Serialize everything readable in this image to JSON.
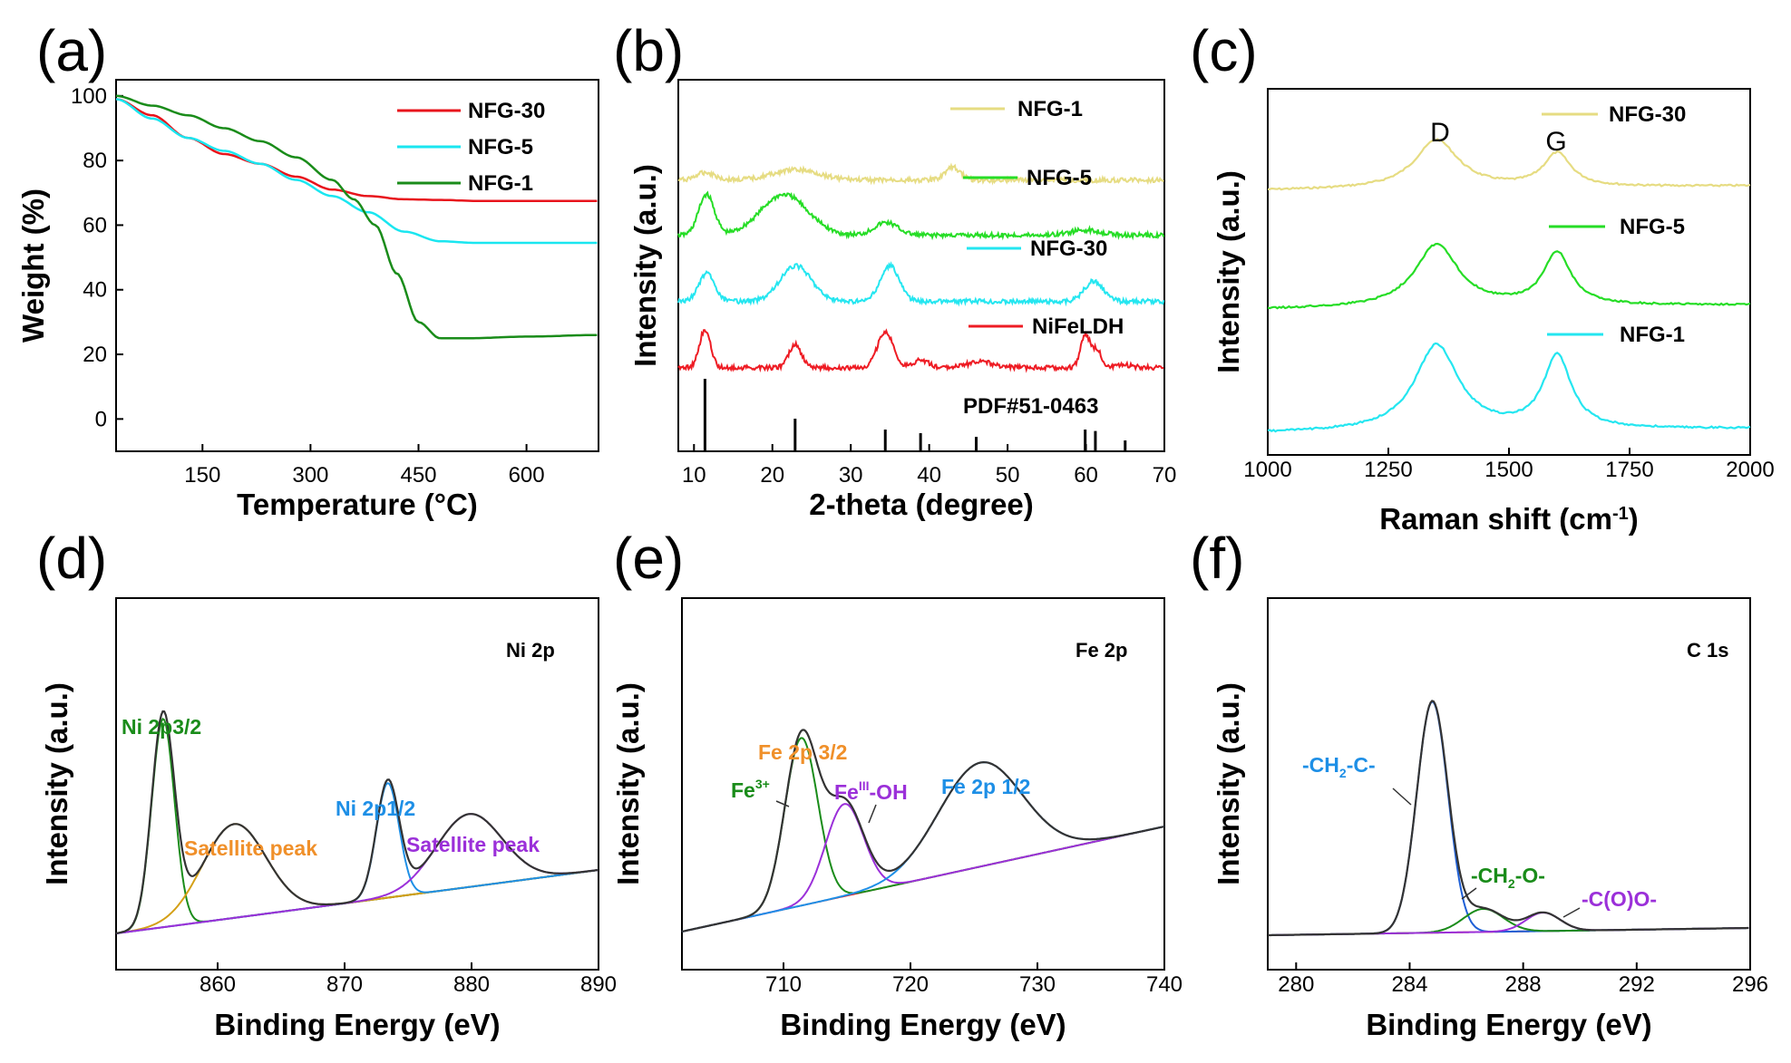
{
  "chart_data": [
    {
      "id": "a",
      "panel_label": "(a)",
      "type": "line",
      "xlabel": "Temperature (°C)",
      "ylabel": "Weight (%)",
      "xlim": [
        30,
        700
      ],
      "ylim": [
        -10,
        105
      ],
      "xticks": [
        150,
        300,
        450,
        600
      ],
      "yticks": [
        0,
        20,
        40,
        60,
        80,
        100
      ],
      "legend_position": "top-right",
      "series": [
        {
          "name": "NFG-30",
          "color": "#e8141c",
          "x": [
            30,
            80,
            130,
            180,
            230,
            280,
            330,
            380,
            430,
            480,
            530,
            600,
            700
          ],
          "y": [
            99,
            94,
            87,
            82,
            79,
            75,
            71,
            69,
            68,
            67.8,
            67.5,
            67.5,
            67.5
          ]
        },
        {
          "name": "NFG-5",
          "color": "#1ae6f0",
          "x": [
            30,
            80,
            130,
            180,
            230,
            280,
            330,
            380,
            430,
            480,
            530,
            600,
            700
          ],
          "y": [
            99,
            93,
            87,
            83,
            79,
            74,
            69,
            64,
            58,
            55,
            54.5,
            54.5,
            54.5
          ]
        },
        {
          "name": "NFG-1",
          "color": "#1a8c1a",
          "x": [
            30,
            80,
            130,
            180,
            230,
            280,
            330,
            360,
            390,
            420,
            450,
            480,
            520,
            600,
            700
          ],
          "y": [
            100,
            97,
            94,
            90,
            86,
            81,
            74,
            68,
            60,
            45,
            30,
            25,
            25,
            25.5,
            26
          ]
        }
      ]
    },
    {
      "id": "b",
      "panel_label": "(b)",
      "type": "line",
      "xlabel": "2-theta (degree)",
      "ylabel": "Intensity (a.u.)",
      "xlim": [
        8,
        70
      ],
      "xticks": [
        10,
        20,
        30,
        40,
        50,
        60,
        70
      ],
      "reference": {
        "label": "PDF#51-0463",
        "peaks": [
          {
            "x": 11.4,
            "h": 1.0
          },
          {
            "x": 22.9,
            "h": 0.45
          },
          {
            "x": 34.4,
            "h": 0.3
          },
          {
            "x": 38.9,
            "h": 0.25
          },
          {
            "x": 46.0,
            "h": 0.2
          },
          {
            "x": 59.9,
            "h": 0.3
          },
          {
            "x": 61.2,
            "h": 0.28
          },
          {
            "x": 65.0,
            "h": 0.15
          }
        ]
      },
      "series": [
        {
          "name": "NFG-1",
          "color": "#e6dc82",
          "baseline": 0.2,
          "peaks": [
            [
              11.5,
              0.3,
              1.2
            ],
            [
              23,
              0.4,
              3
            ],
            [
              43,
              0.5,
              1.0
            ]
          ]
        },
        {
          "name": "NFG-5",
          "color": "#26dd26",
          "baseline": 0.45,
          "peaks": [
            [
              11.6,
              1.6,
              1.0
            ],
            [
              21.5,
              1.6,
              3.0
            ],
            [
              34.5,
              0.5,
              1.5
            ],
            [
              60,
              0.2,
              2
            ]
          ]
        },
        {
          "name": "NFG-30",
          "color": "#24e6f0",
          "baseline": 0.75,
          "peaks": [
            [
              11.6,
              1.1,
              1.0
            ],
            [
              23,
              1.4,
              2.0
            ],
            [
              35,
              1.4,
              1.2
            ],
            [
              61,
              0.8,
              1.2
            ]
          ]
        },
        {
          "name": "NiFeLDH",
          "color": "#ee1c24",
          "baseline": 1.05,
          "peaks": [
            [
              11.4,
              1.5,
              0.7
            ],
            [
              22.9,
              0.9,
              0.8
            ],
            [
              34.4,
              1.4,
              1.0
            ],
            [
              39,
              0.3,
              1.0
            ],
            [
              46.5,
              0.25,
              1.5
            ],
            [
              59.9,
              1.3,
              0.6
            ],
            [
              61.4,
              0.7,
              0.6
            ],
            [
              65,
              0.1,
              1
            ]
          ]
        }
      ]
    },
    {
      "id": "c",
      "panel_label": "(c)",
      "type": "line",
      "xlabel": "Raman shift (cm-1)",
      "ylabel": "Intensity (a.u.)",
      "xlim": [
        1000,
        2000
      ],
      "xticks": [
        1000,
        1250,
        1500,
        1750,
        2000
      ],
      "annotations": [
        {
          "text": "D",
          "x": 1350
        },
        {
          "text": "G",
          "x": 1600
        }
      ],
      "series": [
        {
          "name": "NFG-30",
          "color": "#e6dc82",
          "offset": 2.55,
          "d_height": 0.48,
          "g_height": 0.33
        },
        {
          "name": "NFG-5",
          "color": "#26dd26",
          "offset": 1.3,
          "d_height": 0.62,
          "g_height": 0.52
        },
        {
          "name": "NFG-1",
          "color": "#24e6f0",
          "offset": 0.0,
          "d_height": 0.85,
          "g_height": 0.72
        }
      ]
    },
    {
      "id": "d",
      "panel_label": "(d)",
      "type": "line",
      "title": "Ni 2p",
      "xlabel": "Binding Energy (eV)",
      "ylabel": "Intensity (a.u.)",
      "xlim": [
        852,
        890
      ],
      "xticks": [
        860,
        870,
        880,
        890
      ],
      "annotations": [
        {
          "text": "Ni 2p3/2",
          "color": "#1a8c1a"
        },
        {
          "text": "Satellite peak",
          "color": "#f0902a"
        },
        {
          "text": "Ni 2p1/2",
          "color": "#1e8fe6"
        },
        {
          "text": "Satellite peak",
          "color": "#9b30d9"
        }
      ],
      "components": [
        {
          "name": "Ni 2p3/2",
          "color": "#1a8c1a",
          "center": 855.7,
          "height": 1.0,
          "width": 0.9
        },
        {
          "name": "Ni sat 1",
          "color": "#d4a017",
          "center": 861.3,
          "height": 0.45,
          "width": 2.5
        },
        {
          "name": "Ni 2p1/2",
          "color": "#1e8fe6",
          "center": 873.4,
          "height": 0.55,
          "width": 0.9
        },
        {
          "name": "Ni sat 2",
          "color": "#9b30d9",
          "center": 879.8,
          "height": 0.35,
          "width": 2.6
        }
      ]
    },
    {
      "id": "e",
      "panel_label": "(e)",
      "type": "line",
      "title": "Fe 2p",
      "xlabel": "Binding Energy (eV)",
      "ylabel": "Intensity (a.u.)",
      "xlim": [
        702,
        740
      ],
      "xticks": [
        710,
        720,
        730,
        740
      ],
      "annotations": [
        {
          "text": "Fe 2p 3/2",
          "color": "#f0902a"
        },
        {
          "text": "Fe",
          "sup": "3+",
          "color": "#1a8c1a"
        },
        {
          "text": "Fe",
          "sup": "III",
          "suffix": "-OH",
          "color": "#9b30d9"
        },
        {
          "text": "Fe 2p 1/2",
          "color": "#1e8fe6"
        }
      ],
      "components": [
        {
          "name": "Fe3+",
          "color": "#1a8c1a",
          "center": 711.4,
          "height": 1.0,
          "width": 1.3
        },
        {
          "name": "FeIII-OH",
          "color": "#9b30d9",
          "center": 714.8,
          "height": 0.55,
          "width": 1.5
        },
        {
          "name": "Fe 2p 1/2",
          "color": "#1e8fe6",
          "center": 725.5,
          "height": 0.62,
          "width": 3.3
        }
      ]
    },
    {
      "id": "f",
      "panel_label": "(f)",
      "type": "line",
      "title": "C 1s",
      "xlabel": "Binding Energy (eV)",
      "ylabel": "Intensity (a.u.)",
      "xlim": [
        279,
        296
      ],
      "xticks": [
        280,
        284,
        288,
        292,
        296
      ],
      "annotations": [
        {
          "text": "-CH",
          "sub": "2",
          "suffix": "-C-",
          "color": "#1e8fe6"
        },
        {
          "text": "-CH",
          "sub": "2",
          "suffix": "-O-",
          "color": "#1a8c1a"
        },
        {
          "text": "-C(O)O-",
          "color": "#9b30d9"
        }
      ],
      "components": [
        {
          "name": "-CH2-C-",
          "color": "#1e5fd6",
          "center": 284.8,
          "height": 1.0,
          "width": 0.55
        },
        {
          "name": "-CH2-O-",
          "color": "#1a8c1a",
          "center": 286.6,
          "height": 0.1,
          "width": 0.7
        },
        {
          "name": "-C(O)O-",
          "color": "#9b30d9",
          "center": 288.7,
          "height": 0.08,
          "width": 0.6
        }
      ]
    }
  ]
}
